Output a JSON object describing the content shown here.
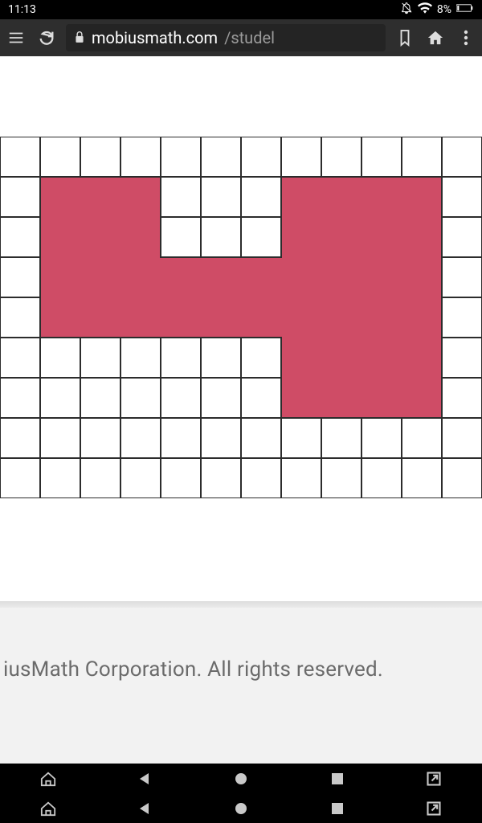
{
  "status": {
    "time": "11:13",
    "battery": "8%"
  },
  "browser": {
    "domain": "mobiusmath.com",
    "path": "/studel"
  },
  "footer": {
    "text": "iusMath Corporation. All rights reserved."
  },
  "grid": {
    "cell": 50,
    "cols": 12,
    "rows": 9,
    "line_color": "#2c2c2c",
    "fill_color": "#cf4c66",
    "bg": "#ffffff",
    "shape_cells": [
      [
        1,
        1
      ],
      [
        2,
        1
      ],
      [
        3,
        1
      ],
      [
        7,
        1
      ],
      [
        8,
        1
      ],
      [
        9,
        1
      ],
      [
        10,
        1
      ],
      [
        1,
        2
      ],
      [
        2,
        2
      ],
      [
        3,
        2
      ],
      [
        7,
        2
      ],
      [
        8,
        2
      ],
      [
        9,
        2
      ],
      [
        10,
        2
      ],
      [
        1,
        3
      ],
      [
        2,
        3
      ],
      [
        3,
        3
      ],
      [
        4,
        3
      ],
      [
        5,
        3
      ],
      [
        6,
        3
      ],
      [
        7,
        3
      ],
      [
        8,
        3
      ],
      [
        9,
        3
      ],
      [
        10,
        3
      ],
      [
        1,
        4
      ],
      [
        2,
        4
      ],
      [
        3,
        4
      ],
      [
        4,
        4
      ],
      [
        5,
        4
      ],
      [
        6,
        4
      ],
      [
        7,
        4
      ],
      [
        8,
        4
      ],
      [
        9,
        4
      ],
      [
        10,
        4
      ],
      [
        7,
        5
      ],
      [
        8,
        5
      ],
      [
        9,
        5
      ],
      [
        10,
        5
      ],
      [
        7,
        6
      ],
      [
        8,
        6
      ],
      [
        9,
        6
      ],
      [
        10,
        6
      ]
    ]
  }
}
